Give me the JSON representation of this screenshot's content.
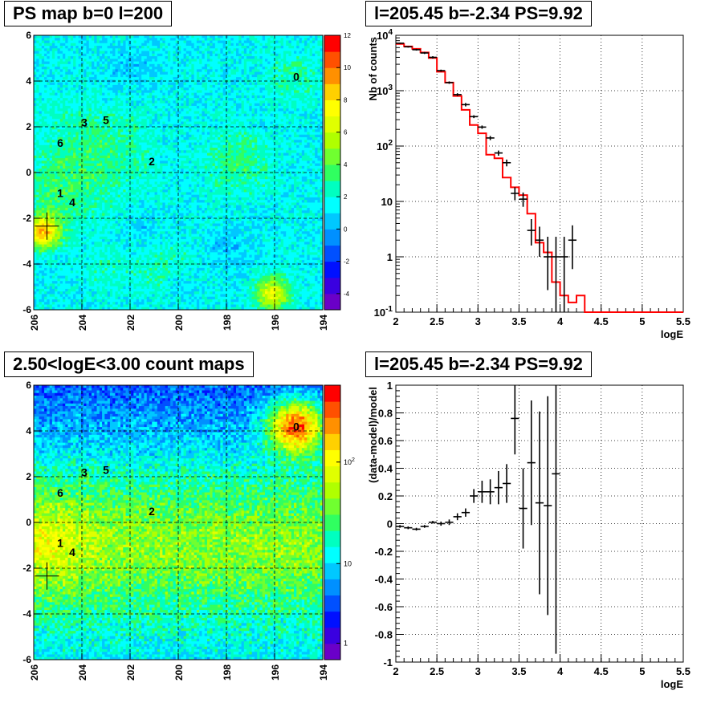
{
  "titles": {
    "ps_map": "PS map b=0 l=200",
    "spectrum": "l=205.45 b=-2.34 PS=9.92",
    "count_map": "2.50<logE<3.00 count maps",
    "residual": "l=205.45 b=-2.34 PS=9.92"
  },
  "chart_data": [
    {
      "type": "heatmap",
      "title": "PS map b=0 l=200",
      "x_ticks": [
        "206",
        "204",
        "202",
        "200",
        "198",
        "196",
        "194"
      ],
      "xlim": [
        206,
        194
      ],
      "y_ticks": [
        "-6",
        "-4",
        "-2",
        "0",
        "2",
        "4",
        "6"
      ],
      "ylim": [
        -6,
        6
      ],
      "colorbar_ticks": [
        "12",
        "10",
        "8",
        "6",
        "4",
        "2",
        "0",
        "-2",
        "-4"
      ],
      "colorbar_range": [
        -5,
        12
      ],
      "sources": [
        {
          "label": "0",
          "l": 195.1,
          "b": 4.2
        },
        {
          "label": "1",
          "l": 204.9,
          "b": -0.9
        },
        {
          "label": "2",
          "l": 201.1,
          "b": 0.5
        },
        {
          "label": "3",
          "l": 203.9,
          "b": 2.2
        },
        {
          "label": "4",
          "l": 204.4,
          "b": -1.3
        },
        {
          "label": "5",
          "l": 203.0,
          "b": 2.3
        },
        {
          "label": "6",
          "l": 204.9,
          "b": 1.3
        }
      ],
      "marker": {
        "l": 205.45,
        "b": -2.34
      },
      "hot_spots": [
        {
          "l": 205.6,
          "b": -2.6,
          "value": 10
        },
        {
          "l": 196.1,
          "b": -5.3,
          "value": 8
        }
      ]
    },
    {
      "type": "line",
      "title": "l=205.45 b=-2.34 PS=9.92",
      "xlabel": "logE",
      "ylabel": "Nb of counts",
      "xlim": [
        2,
        5.5
      ],
      "ylim": [
        0.1,
        10000
      ],
      "y_scale": "log",
      "x_ticks": [
        "2",
        "2.5",
        "3",
        "3.5",
        "4",
        "4.5",
        "5",
        "5.5"
      ],
      "y_ticks": [
        "10^-1",
        "1",
        "10",
        "10^2",
        "10^3",
        "10^4"
      ],
      "grid": true,
      "series": [
        {
          "type": "step",
          "color": "#ff0000",
          "x_edges": [
            2.0,
            2.1,
            2.2,
            2.3,
            2.4,
            2.5,
            2.6,
            2.7,
            2.8,
            2.9,
            3.0,
            3.1,
            3.2,
            3.3,
            3.4,
            3.5,
            3.6,
            3.7,
            3.8,
            3.9,
            4.0,
            4.1,
            4.2,
            4.3,
            4.4,
            5.5
          ],
          "values": [
            7000,
            6300,
            5700,
            4900,
            3900,
            2200,
            1400,
            800,
            450,
            240,
            170,
            70,
            60,
            27,
            18,
            13,
            6,
            1.8,
            1.2,
            0.35,
            0.2,
            0.15,
            0.2,
            0.1,
            0.1
          ]
        },
        {
          "type": "error",
          "color": "#000000",
          "points": [
            {
              "x": 2.05,
              "y": 7200,
              "lo": 7000,
              "hi": 7400
            },
            {
              "x": 2.15,
              "y": 6200,
              "lo": 6000,
              "hi": 6400
            },
            {
              "x": 2.25,
              "y": 5500,
              "lo": 5300,
              "hi": 5700
            },
            {
              "x": 2.35,
              "y": 4800,
              "lo": 4600,
              "hi": 5000
            },
            {
              "x": 2.45,
              "y": 4000,
              "lo": 3800,
              "hi": 4200
            },
            {
              "x": 2.55,
              "y": 2300,
              "lo": 2200,
              "hi": 2400
            },
            {
              "x": 2.65,
              "y": 1400,
              "lo": 1330,
              "hi": 1470
            },
            {
              "x": 2.75,
              "y": 850,
              "lo": 800,
              "hi": 900
            },
            {
              "x": 2.85,
              "y": 560,
              "lo": 520,
              "hi": 600
            },
            {
              "x": 2.95,
              "y": 340,
              "lo": 320,
              "hi": 360
            },
            {
              "x": 3.05,
              "y": 220,
              "lo": 205,
              "hi": 235
            },
            {
              "x": 3.15,
              "y": 140,
              "lo": 128,
              "hi": 152
            },
            {
              "x": 3.25,
              "y": 75,
              "lo": 67,
              "hi": 83
            },
            {
              "x": 3.35,
              "y": 50,
              "lo": 43,
              "hi": 57
            },
            {
              "x": 3.45,
              "y": 14,
              "lo": 10.5,
              "hi": 18
            },
            {
              "x": 3.55,
              "y": 11,
              "lo": 8,
              "hi": 14.5
            },
            {
              "x": 3.65,
              "y": 3,
              "lo": 1.6,
              "hi": 4.8
            },
            {
              "x": 3.75,
              "y": 2,
              "lo": 1,
              "hi": 3.5
            },
            {
              "x": 3.85,
              "y": 1,
              "lo": 0.25,
              "hi": 2.3
            },
            {
              "x": 3.95,
              "y": 1,
              "lo": 0.1,
              "hi": 2.3
            },
            {
              "x": 4.05,
              "y": 1,
              "lo": 0.1,
              "hi": 2.3
            },
            {
              "x": 4.15,
              "y": 2,
              "lo": 0.6,
              "hi": 3.7
            }
          ]
        }
      ]
    },
    {
      "type": "heatmap",
      "title": "2.50<logE<3.00 count maps",
      "x_ticks": [
        "206",
        "204",
        "202",
        "200",
        "198",
        "196",
        "194"
      ],
      "xlim": [
        206,
        194
      ],
      "y_ticks": [
        "-6",
        "-4",
        "-2",
        "0",
        "2",
        "4",
        "6"
      ],
      "ylim": [
        -6,
        6
      ],
      "colorbar_ticks": [
        "10^2",
        "10",
        "1"
      ],
      "colorbar_scale": "log",
      "sources": [
        {
          "label": "0",
          "l": 195.1,
          "b": 4.2
        },
        {
          "label": "1",
          "l": 204.9,
          "b": -0.9
        },
        {
          "label": "2",
          "l": 201.1,
          "b": 0.5
        },
        {
          "label": "3",
          "l": 203.9,
          "b": 2.2
        },
        {
          "label": "4",
          "l": 204.4,
          "b": -1.3
        },
        {
          "label": "5",
          "l": 203.0,
          "b": 2.3
        },
        {
          "label": "6",
          "l": 204.9,
          "b": 1.3
        }
      ],
      "marker": {
        "l": 205.45,
        "b": -2.34
      }
    },
    {
      "type": "scatter",
      "title": "l=205.45 b=-2.34 PS=9.92",
      "xlabel": "logE",
      "ylabel": "(data-model)/model",
      "xlim": [
        2,
        5.5
      ],
      "ylim": [
        -1,
        1
      ],
      "x_ticks": [
        "2",
        "2.5",
        "3",
        "3.5",
        "4",
        "4.5",
        "5",
        "5.5"
      ],
      "y_ticks": [
        "-1",
        "-0.8",
        "-0.6",
        "-0.4",
        "-0.2",
        "0",
        "0.2",
        "0.4",
        "0.6",
        "0.8",
        "1"
      ],
      "grid": true,
      "points": [
        {
          "x": 2.05,
          "y": -0.02,
          "err": 0.01
        },
        {
          "x": 2.15,
          "y": -0.03,
          "err": 0.01
        },
        {
          "x": 2.25,
          "y": -0.04,
          "err": 0.01
        },
        {
          "x": 2.35,
          "y": -0.02,
          "err": 0.01
        },
        {
          "x": 2.45,
          "y": 0.01,
          "err": 0.01
        },
        {
          "x": 2.55,
          "y": 0.0,
          "err": 0.015
        },
        {
          "x": 2.65,
          "y": 0.01,
          "err": 0.02
        },
        {
          "x": 2.75,
          "y": 0.05,
          "err": 0.025
        },
        {
          "x": 2.85,
          "y": 0.08,
          "err": 0.03
        },
        {
          "x": 2.95,
          "y": 0.2,
          "err": 0.05
        },
        {
          "x": 3.05,
          "y": 0.23,
          "err": 0.08
        },
        {
          "x": 3.15,
          "y": 0.23,
          "err": 0.09
        },
        {
          "x": 3.25,
          "y": 0.26,
          "err": 0.12
        },
        {
          "x": 3.35,
          "y": 0.29,
          "err": 0.14
        },
        {
          "x": 3.45,
          "y": 0.76,
          "err": 0.26
        },
        {
          "x": 3.55,
          "y": 0.11,
          "err": 0.29
        },
        {
          "x": 3.65,
          "y": 0.44,
          "err": 0.45
        },
        {
          "x": 3.75,
          "y": 0.15,
          "err": 0.66
        },
        {
          "x": 3.85,
          "y": 0.13,
          "err": 0.79
        },
        {
          "x": 3.95,
          "y": 0.36,
          "err": 1.3
        }
      ]
    }
  ]
}
